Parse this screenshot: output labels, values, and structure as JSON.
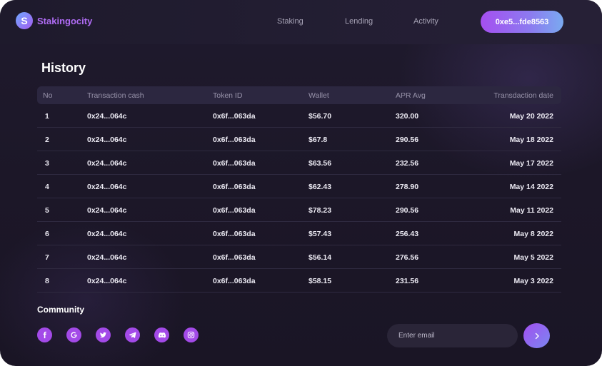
{
  "app": {
    "name": "Stakingocity",
    "logo_letter": "S"
  },
  "nav": {
    "items": [
      "Staking",
      "Lending",
      "Activity"
    ]
  },
  "wallet": {
    "address": "0xe5...fde8563"
  },
  "page": {
    "title": "History"
  },
  "table": {
    "headers": [
      "No",
      "Transaction cash",
      "Token ID",
      "Wallet",
      "APR Avg",
      "Transdaction date"
    ],
    "rows": [
      [
        "1",
        "0x24...064c",
        "0x6f...063da",
        "$56.70",
        "320.00",
        "May 20 2022"
      ],
      [
        "2",
        "0x24...064c",
        "0x6f...063da",
        "$67.8",
        "290.56",
        "May 18 2022"
      ],
      [
        "3",
        "0x24...064c",
        "0x6f...063da",
        "$63.56",
        "232.56",
        "May 17 2022"
      ],
      [
        "4",
        "0x24...064c",
        "0x6f...063da",
        "$62.43",
        "278.90",
        "May 14 2022"
      ],
      [
        "5",
        "0x24...064c",
        "0x6f...063da",
        "$78.23",
        "290.56",
        "May 11 2022"
      ],
      [
        "6",
        "0x24...064c",
        "0x6f...063da",
        "$57.43",
        "256.43",
        "May 8 2022"
      ],
      [
        "7",
        "0x24...064c",
        "0x6f...063da",
        "$56.14",
        "276.56",
        "May 5 2022"
      ],
      [
        "8",
        "0x24...064c",
        "0x6f...063da",
        "$58.15",
        "231.56",
        "May 3 2022"
      ]
    ]
  },
  "community": {
    "title": "Community",
    "icons": [
      "facebook-icon",
      "google-icon",
      "twitter-icon",
      "telegram-icon",
      "discord-icon",
      "instagram-icon"
    ]
  },
  "newsletter": {
    "placeholder": "Enter email"
  },
  "colors": {
    "accent": "#a34ae8",
    "background": "#1c1728",
    "header_row": "#2c2740"
  }
}
